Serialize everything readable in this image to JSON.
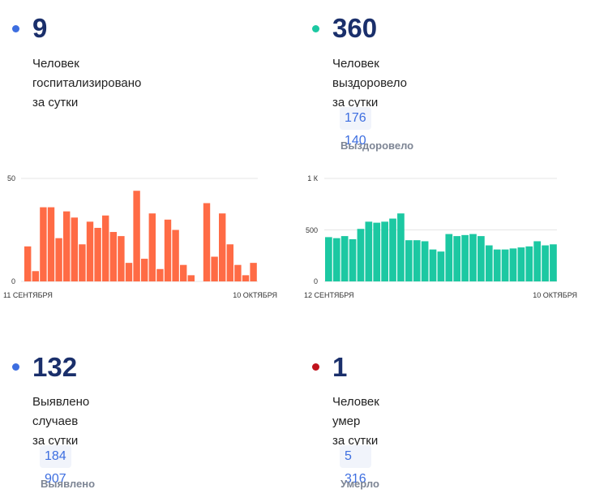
{
  "colors": {
    "blue_dot": "#3d6ee0",
    "green_dot": "#1cc8a2",
    "red_dot": "#c0121c",
    "hosp_bar": "#ff6b45",
    "recov_bar": "#1cc8a2"
  },
  "cards": {
    "hospitalized": {
      "value": "9",
      "line1": "Человек госпитализировано",
      "line2": "за сутки"
    },
    "recovered": {
      "value": "360",
      "line1": "Человек выздоровело",
      "line2": "за сутки",
      "total": "176 140",
      "total_label": "Выздоровело"
    },
    "cases": {
      "value": "132",
      "line1": "Выявлено случаев",
      "line2": "за сутки",
      "total": "184 907",
      "total_label": "Выявлено"
    },
    "deaths": {
      "value": "1",
      "line1": "Человек умер",
      "line2": "за сутки",
      "total": "5 316",
      "total_label": "Умерло"
    }
  },
  "chart_data": [
    {
      "type": "bar",
      "ytick_labels": [
        "50",
        "0"
      ],
      "ylim": [
        0,
        50
      ],
      "x_start_label": "11 СЕНТЯБРЯ",
      "x_end_label": "10 ОКТЯБРЯ",
      "values": [
        17,
        5,
        36,
        36,
        21,
        34,
        31,
        18,
        29,
        26,
        32,
        24,
        22,
        9,
        44,
        11,
        33,
        6,
        30,
        25,
        8,
        3,
        null,
        38,
        12,
        33,
        18,
        8,
        3,
        9
      ],
      "grid": true
    },
    {
      "type": "bar",
      "ytick_labels": [
        "1 К",
        "500",
        "0"
      ],
      "ylim": [
        0,
        1000
      ],
      "x_start_label": "12 СЕНТЯБРЯ",
      "x_end_label": "10 ОКТЯБРЯ",
      "values": [
        430,
        420,
        440,
        410,
        510,
        580,
        570,
        580,
        610,
        660,
        400,
        400,
        390,
        310,
        290,
        460,
        440,
        450,
        460,
        440,
        350,
        310,
        310,
        320,
        330,
        340,
        390,
        350,
        360
      ],
      "grid": true
    }
  ]
}
